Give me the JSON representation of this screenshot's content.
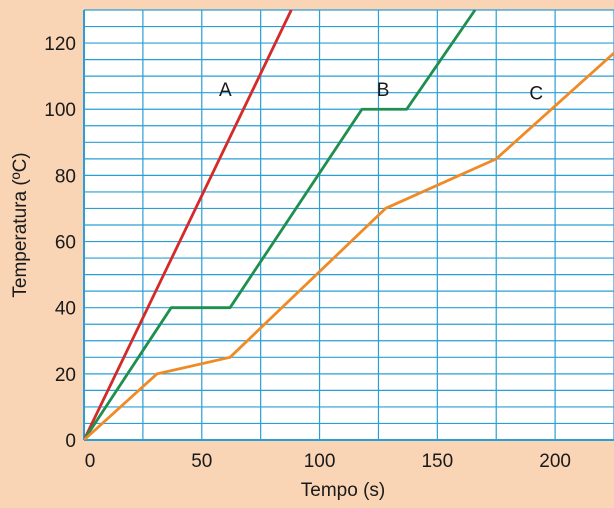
{
  "chart_data": {
    "type": "line",
    "xlabel": "Tempo (s)",
    "ylabel": "Temperatura (ºC)",
    "xlim": [
      0,
      225
    ],
    "ylim": [
      0,
      130
    ],
    "x_ticks": [
      0,
      50,
      100,
      150,
      200
    ],
    "y_ticks": [
      0,
      20,
      40,
      60,
      80,
      100,
      120
    ],
    "x_tick_labels": [
      "0",
      "50",
      "100",
      "150",
      "200"
    ],
    "y_tick_labels": [
      "0",
      "20",
      "40",
      "60",
      "80",
      "100",
      "120"
    ],
    "x_grid_step": 25,
    "y_grid_step": 5,
    "grid": true,
    "series": [
      {
        "name": "A",
        "color": "#d42a2a",
        "points": [
          [
            0,
            0
          ],
          [
            88,
            130
          ]
        ],
        "label_at": [
          60,
          104
        ]
      },
      {
        "name": "B",
        "color": "#1e8f4e",
        "points": [
          [
            0,
            0
          ],
          [
            37,
            40
          ],
          [
            62,
            40
          ],
          [
            118,
            100
          ],
          [
            137,
            100
          ],
          [
            166,
            130
          ]
        ],
        "label_at": [
          127,
          104
        ]
      },
      {
        "name": "C",
        "color": "#f08a24",
        "points": [
          [
            0,
            0
          ],
          [
            31,
            20
          ],
          [
            62,
            25
          ],
          [
            128,
            70
          ],
          [
            175,
            85
          ],
          [
            225,
            117
          ]
        ],
        "label_at": [
          192,
          103
        ]
      }
    ]
  },
  "colors": {
    "background": "#f9d5b6",
    "plot_area": "#ffffff",
    "grid_line": "#2a9fd6",
    "axis": "#2a9fd6"
  }
}
